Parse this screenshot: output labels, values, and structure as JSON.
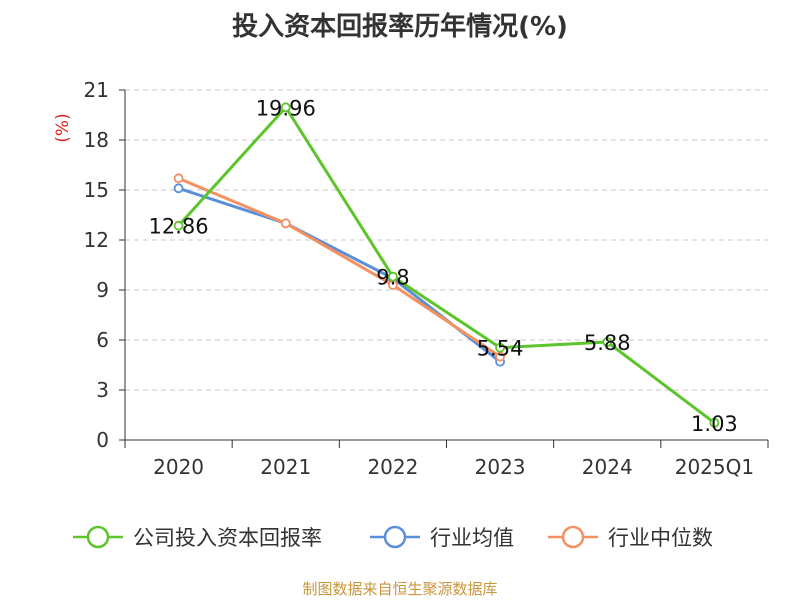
{
  "chart_data": {
    "type": "line",
    "title": "投入资本回报率历年情况(%)",
    "ylabel": "(%)",
    "categories": [
      "2020",
      "2021",
      "2022",
      "2023",
      "2024",
      "2025Q1"
    ],
    "ylim": [
      0,
      21
    ],
    "yticks": [
      0,
      3,
      6,
      9,
      12,
      15,
      18,
      21
    ],
    "grid": true,
    "legend_position": "bottom",
    "series": [
      {
        "name": "公司投入资本回报率",
        "color": "#5cc52b",
        "values": [
          12.86,
          19.96,
          9.8,
          5.54,
          5.88,
          1.03
        ],
        "labels": [
          "12.86",
          "19.96",
          "9.8",
          "5.54",
          "5.88",
          "1.03"
        ]
      },
      {
        "name": "行业均值",
        "color": "#5b8fd9",
        "values": [
          15.1,
          13.0,
          9.7,
          4.7,
          null,
          null
        ]
      },
      {
        "name": "行业中位数",
        "color": "#f59160",
        "values": [
          15.7,
          13.0,
          9.3,
          5.0,
          null,
          null
        ]
      }
    ]
  },
  "source": "制图数据来自恒生聚源数据库"
}
